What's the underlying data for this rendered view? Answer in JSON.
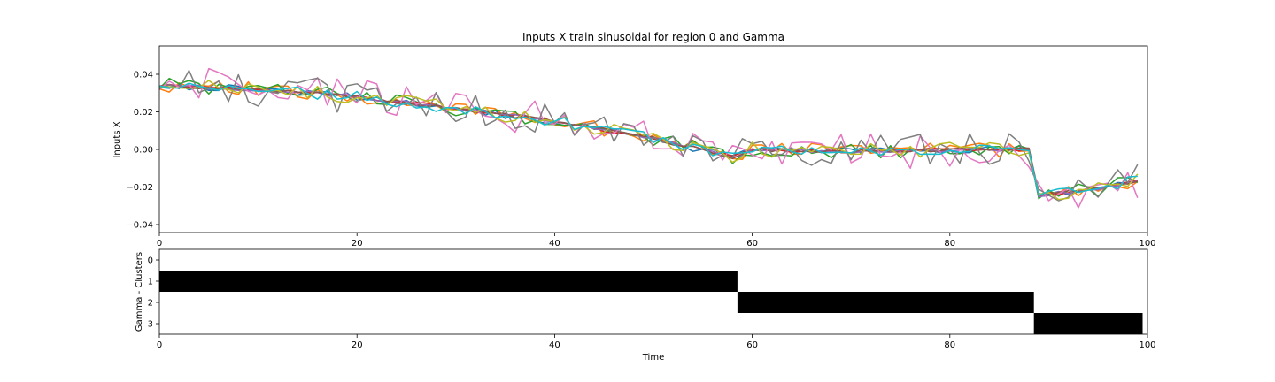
{
  "chart_data": [
    {
      "type": "line",
      "title": "Inputs X train sinusoidal for region 0 and Gamma",
      "xlabel": "",
      "ylabel": "Inputs X",
      "xlim": [
        0,
        100
      ],
      "ylim": [
        -0.044,
        0.055
      ],
      "xticks": [
        "0",
        "20",
        "40",
        "60",
        "80",
        "100"
      ],
      "yticks": [
        "0.04",
        "0.02",
        "0.00",
        "−0.02",
        "−0.04"
      ],
      "legend": "none",
      "grid": false,
      "mean_profile": [
        [
          0,
          0.034
        ],
        [
          10,
          0.032
        ],
        [
          20,
          0.028
        ],
        [
          30,
          0.022
        ],
        [
          40,
          0.015
        ],
        [
          50,
          0.006
        ],
        [
          58,
          -0.004
        ],
        [
          60,
          0.0
        ],
        [
          70,
          -0.001
        ],
        [
          80,
          0.0
        ],
        [
          88,
          0.0
        ],
        [
          89,
          -0.024
        ],
        [
          95,
          -0.021
        ],
        [
          99,
          -0.016
        ]
      ],
      "series": [
        {
          "color": "#1f77b4",
          "noise": 0.002,
          "seed": 1
        },
        {
          "color": "#ff7f0e",
          "noise": 0.004,
          "seed": 2
        },
        {
          "color": "#2ca02c",
          "noise": 0.004,
          "seed": 3
        },
        {
          "color": "#d62728",
          "noise": 0.001,
          "seed": 4
        },
        {
          "color": "#9467bd",
          "noise": 0.001,
          "seed": 5
        },
        {
          "color": "#8c564b",
          "noise": 0.001,
          "seed": 6
        },
        {
          "color": "#e377c2",
          "noise": 0.01,
          "seed": 7
        },
        {
          "color": "#7f7f7f",
          "noise": 0.009,
          "seed": 8
        },
        {
          "color": "#bcbd22",
          "noise": 0.004,
          "seed": 9
        },
        {
          "color": "#17becf",
          "noise": 0.003,
          "seed": 10
        }
      ]
    },
    {
      "type": "heatmap",
      "title": "",
      "xlabel": "Time",
      "ylabel": "Gamma - Clusters",
      "xlim": [
        0,
        100
      ],
      "xticks": [
        "0",
        "20",
        "40",
        "60",
        "80",
        "100"
      ],
      "yticks": [
        "0",
        "1",
        "2",
        "3"
      ],
      "clusters": [
        0,
        1,
        2,
        3
      ],
      "segments": [
        {
          "cluster": 1,
          "start": 0,
          "end": 58.5
        },
        {
          "cluster": 2,
          "start": 58.5,
          "end": 88.5
        },
        {
          "cluster": 3,
          "start": 88.5,
          "end": 99.5
        }
      ],
      "colors": {
        "active": "#000000",
        "inactive": "#ffffff"
      }
    }
  ]
}
